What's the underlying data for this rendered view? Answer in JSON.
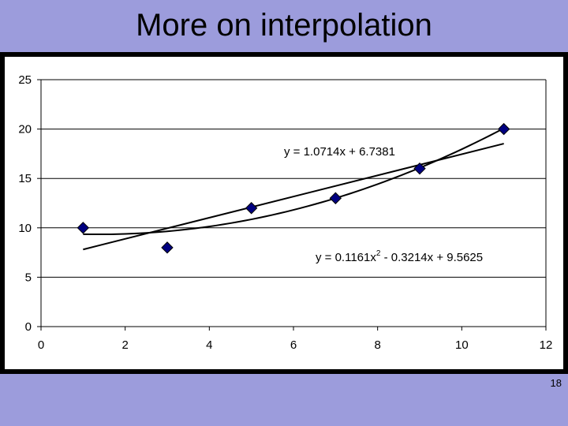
{
  "slide": {
    "title": "More on interpolation",
    "page_number": "18"
  },
  "chart_data": {
    "type": "scatter",
    "title": "",
    "xlabel": "",
    "ylabel": "",
    "xlim": [
      0,
      12
    ],
    "ylim": [
      0,
      25
    ],
    "xticks": [
      0,
      2,
      4,
      6,
      8,
      10,
      12
    ],
    "yticks": [
      0,
      5,
      10,
      15,
      20,
      25
    ],
    "grid": "horizontal",
    "legend": "none",
    "series": [
      {
        "x": [
          1,
          3,
          5,
          7,
          9,
          11
        ],
        "values": [
          10,
          8,
          12,
          13,
          16,
          20
        ],
        "marker": "diamond",
        "color": "#000080"
      }
    ],
    "trendlines": [
      {
        "kind": "linear",
        "equation": "y = 1.0714x + 6.7381",
        "coefficients": [
          1.0714,
          6.7381
        ],
        "x_range": [
          1,
          11
        ]
      },
      {
        "kind": "polynomial",
        "equation_parts": [
          "y = 0.1161x",
          "2",
          " - 0.3214x + 9.5625"
        ],
        "coefficients": [
          0.1161,
          -0.3214,
          9.5625
        ],
        "x_range": [
          1,
          11
        ]
      }
    ]
  }
}
